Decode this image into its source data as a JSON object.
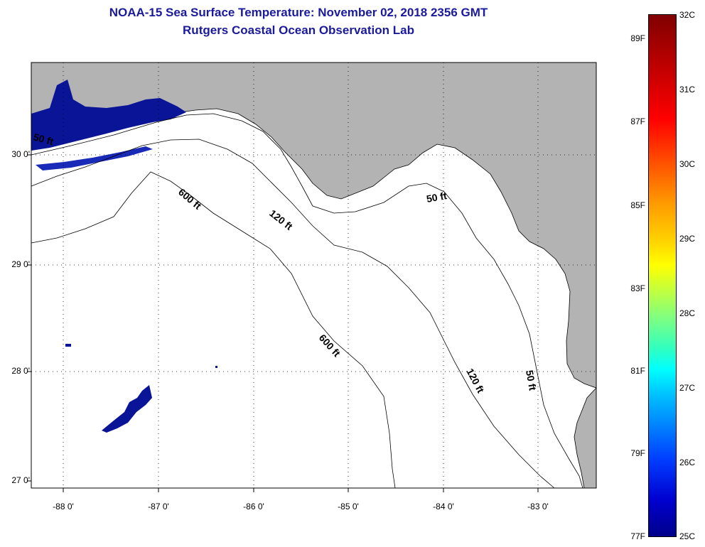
{
  "title": "NOAA-15 Sea Surface Temperature:  November 02, 2018 2356 GMT",
  "subtitle": "Rutgers Coastal Ocean Observation Lab",
  "axes": {
    "lat_labels": [
      "30 0'",
      "29 0'",
      "28 0'",
      "27 0'"
    ],
    "lon_labels": [
      "-88 0'",
      "-87 0'",
      "-86 0'",
      "-85 0'",
      "-84 0'",
      "-83 0'"
    ]
  },
  "contours": {
    "c50_a": "50 ft",
    "c50_b": "50 ft",
    "c50_c": "50 ft",
    "c120_a": "120 ft",
    "c120_b": "120 ft",
    "c600_a": "600 ft",
    "c600_b": "600 ft"
  },
  "colorbar": {
    "fahrenheit": [
      "89F",
      "87F",
      "85F",
      "83F",
      "81F",
      "79F",
      "77F"
    ],
    "celsius": [
      "32C",
      "31C",
      "30C",
      "29C",
      "28C",
      "27C",
      "26C",
      "25C"
    ]
  },
  "colors": {
    "land": "#b3b3b3",
    "sst_cold": "#0a1496",
    "title": "#1a1a9c"
  }
}
